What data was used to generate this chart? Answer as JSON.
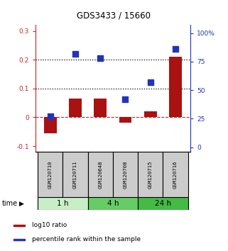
{
  "title": "GDS3433 / 15660",
  "samples": [
    "GSM120710",
    "GSM120711",
    "GSM120648",
    "GSM120708",
    "GSM120715",
    "GSM120716"
  ],
  "log10_ratio": [
    -0.055,
    0.065,
    0.065,
    -0.018,
    0.02,
    0.21
  ],
  "percentile_rank_pct": [
    27,
    82,
    78,
    42,
    57,
    86
  ],
  "bar_color": "#aa1111",
  "dot_color": "#2233bb",
  "groups": [
    {
      "label": "1 h",
      "indices": [
        0,
        1
      ],
      "color": "#c8eec8"
    },
    {
      "label": "4 h",
      "indices": [
        2,
        3
      ],
      "color": "#66cc66"
    },
    {
      "label": "24 h",
      "indices": [
        4,
        5
      ],
      "color": "#44bb44"
    }
  ],
  "ylim_left": [
    -0.12,
    0.32
  ],
  "ylim_right": [
    -4.0,
    107.0
  ],
  "yticks_left": [
    -0.1,
    0.0,
    0.1,
    0.2,
    0.3
  ],
  "yticks_right": [
    0,
    25,
    50,
    75,
    100
  ],
  "ytick_labels_left": [
    "-0.1",
    "0",
    "0.1",
    "0.2",
    "0.3"
  ],
  "ytick_labels_right": [
    "0",
    "25",
    "50",
    "75",
    "100%"
  ],
  "hlines": [
    0.1,
    0.2
  ],
  "left_axis_color": "#cc2222",
  "right_axis_color": "#2233bb",
  "legend_items": [
    {
      "label": "log10 ratio",
      "color": "#aa1111"
    },
    {
      "label": "percentile rank within the sample",
      "color": "#2233bb"
    }
  ],
  "time_label": "time",
  "bar_width": 0.5,
  "dot_size": 28
}
